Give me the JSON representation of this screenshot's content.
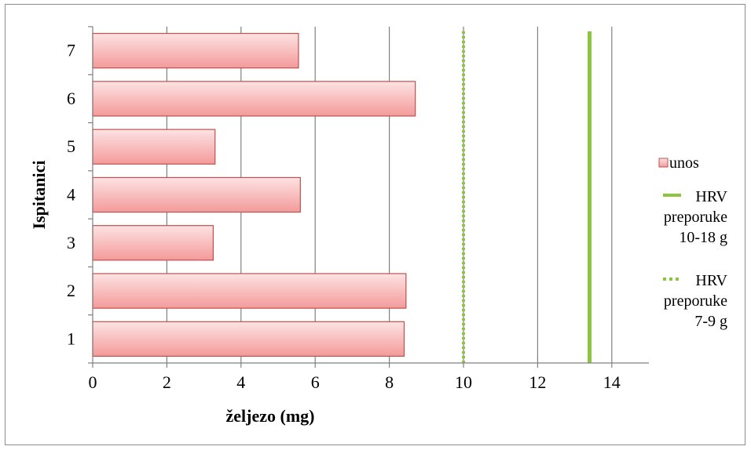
{
  "chart_data": {
    "type": "bar",
    "orientation": "horizontal",
    "categories": [
      "1",
      "2",
      "3",
      "4",
      "5",
      "6",
      "7"
    ],
    "series": [
      {
        "name": "unos",
        "values": [
          8.4,
          8.45,
          3.25,
          5.6,
          3.3,
          8.7,
          5.55
        ]
      }
    ],
    "reference_lines": [
      {
        "label_lines": [
          "HRV",
          "preporuke",
          "10-18 g"
        ],
        "x": 13.4,
        "style": "solid"
      },
      {
        "label_lines": [
          "HRV",
          "preporuke",
          "7-9 g"
        ],
        "x": 10,
        "style": "dotted"
      }
    ],
    "xlabel": "željezo (mg)",
    "ylabel": "Ispitanici",
    "xlim": [
      0,
      15
    ],
    "xticks": [
      0,
      2,
      4,
      6,
      8,
      10,
      12,
      14
    ],
    "grid": "vertical",
    "legend_position": "right",
    "colors": {
      "bar_fill_top": "#fde3e3",
      "bar_fill_bottom": "#f49a9a",
      "bar_border": "#c0504d",
      "reference_line": "#8cc63f",
      "gridline": "#808080",
      "axis": "#808080"
    }
  }
}
